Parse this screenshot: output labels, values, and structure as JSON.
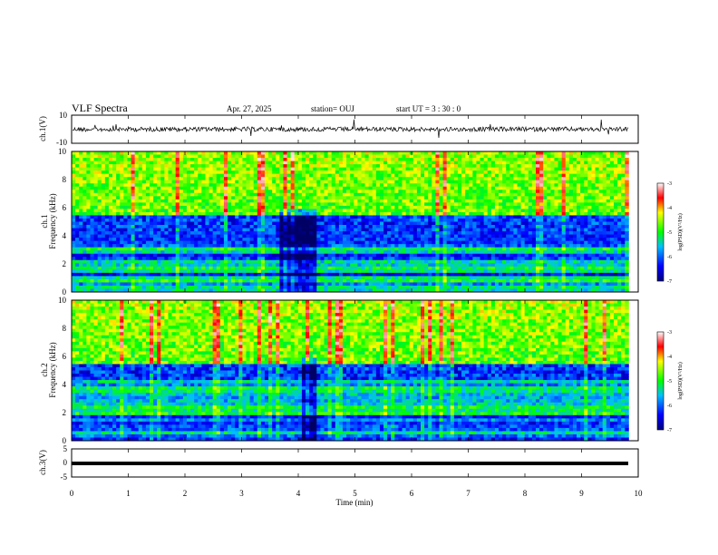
{
  "header": {
    "title": "VLF Spectra",
    "date": "Apr. 27, 2025",
    "station": "station= OUJ",
    "start": "start  UT =  3 : 30 : 0"
  },
  "chart_data": [
    {
      "name": "ch1-waveform",
      "type": "line",
      "ylabel": "ch.1(V)",
      "ylim": [
        -10,
        10
      ],
      "yticks": [
        "10",
        "-10"
      ],
      "xlim": [
        0,
        10
      ],
      "trace_span_min": [
        0,
        9.83
      ],
      "description": "noise waveform with occasional spikes"
    },
    {
      "name": "ch1-spectrogram",
      "type": "heatmap",
      "ylabel": "ch.1\nFrequency (kHz)",
      "xlim": [
        0,
        10
      ],
      "ylim": [
        0,
        10
      ],
      "yticks": [
        "0",
        "2",
        "4",
        "6",
        "8",
        "10"
      ],
      "colorbar": {
        "label": "log(PSD)(V²/Hz)",
        "range": [
          -7,
          -3
        ],
        "ticks": [
          "-3",
          "-4",
          "-5",
          "-6",
          "-7"
        ]
      }
    },
    {
      "name": "ch2-spectrogram",
      "type": "heatmap",
      "ylabel": "ch.2\nFrequency (kHz)",
      "xlim": [
        0,
        10
      ],
      "ylim": [
        0,
        10
      ],
      "yticks": [
        "0",
        "2",
        "4",
        "6",
        "8",
        "10"
      ],
      "colorbar": {
        "label": "log(PSD)(V²/Hz)",
        "range": [
          -7,
          -3
        ],
        "ticks": [
          "-3",
          "-4",
          "-5",
          "-6",
          "-7"
        ]
      }
    },
    {
      "name": "ch3-waveform",
      "type": "line",
      "ylabel": "ch.3(V)",
      "ylim": [
        -5,
        5
      ],
      "yticks": [
        "5",
        "0",
        "-5"
      ],
      "xlim": [
        0,
        10
      ],
      "trace_span_min": [
        0,
        9.83
      ],
      "constant_value": 0
    }
  ],
  "xaxis": {
    "label": "Time (min)",
    "ticks": [
      "0",
      "1",
      "2",
      "3",
      "4",
      "5",
      "6",
      "7",
      "8",
      "9",
      "10"
    ]
  },
  "colors": {
    "cold": "#00008b",
    "cool": "#0000ff",
    "mid": "#00ff00",
    "warm": "#ffff00",
    "hot": "#ff0000"
  }
}
